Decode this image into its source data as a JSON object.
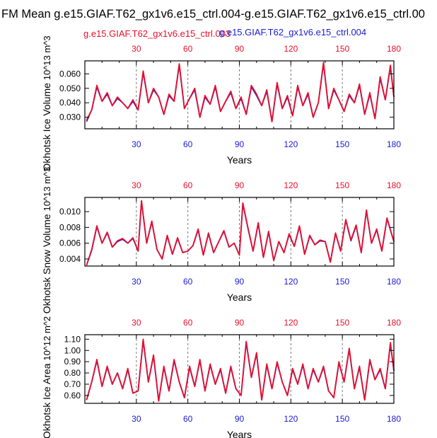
{
  "page": {
    "title": "FM Mean g.e15.GIAF.T62_gx1v6.e15_ctrl.004-g.e15.GIAF.T62_gx1v6.e15_ctrl.00",
    "legend_red": "g.e15.GIAF.T62_gx1v6.e15_ctrl.003",
    "legend_blue": "g.e15.GIAF.T62_gx1v6.e15_ctrl.004"
  },
  "colors": {
    "red": "#e8102b",
    "blue": "#1b1bd6",
    "frame": "#000000",
    "grid": "#7a7a7a"
  },
  "chart_data": [
    {
      "type": "line",
      "ylabel": "Okhotsk Ice Volume",
      "yunits": "10^13 m^3",
      "xlabel": "Years",
      "xlim": [
        0,
        180
      ],
      "ylim": [
        0.022,
        0.069
      ],
      "xticks": [
        30,
        60,
        90,
        120,
        150,
        180
      ],
      "yticks": [
        0.03,
        0.04,
        0.05,
        0.06
      ],
      "yticklabels": [
        "0.030",
        "0.040",
        "0.050",
        "0.060"
      ],
      "series": [
        {
          "name": "g.e15.GIAF.T62_gx1v6.e15_ctrl.003",
          "color": "red",
          "x": [
            1,
            4,
            7,
            10,
            13,
            16,
            19,
            22,
            25,
            28,
            31,
            34,
            37,
            40,
            43,
            46,
            49,
            52,
            55,
            58,
            61,
            64,
            67,
            70,
            73,
            76,
            79,
            82,
            85,
            88,
            91,
            94,
            97,
            100,
            103,
            106,
            109,
            112,
            115,
            118,
            121,
            124,
            127,
            130,
            133,
            136,
            139,
            142,
            145,
            148,
            151,
            154,
            157,
            160,
            163,
            166,
            169,
            172,
            175,
            178,
            180
          ],
          "y": [
            0.028,
            0.035,
            0.052,
            0.041,
            0.047,
            0.038,
            0.044,
            0.04,
            0.036,
            0.042,
            0.035,
            0.062,
            0.04,
            0.05,
            0.044,
            0.032,
            0.046,
            0.041,
            0.067,
            0.036,
            0.043,
            0.05,
            0.03,
            0.045,
            0.039,
            0.052,
            0.034,
            0.041,
            0.048,
            0.036,
            0.044,
            0.032,
            0.052,
            0.046,
            0.038,
            0.049,
            0.027,
            0.054,
            0.036,
            0.045,
            0.031,
            0.052,
            0.038,
            0.047,
            0.03,
            0.04,
            0.068,
            0.036,
            0.05,
            0.042,
            0.034,
            0.046,
            0.04,
            0.053,
            0.032,
            0.047,
            0.029,
            0.058,
            0.042,
            0.066,
            0.044
          ]
        },
        {
          "name": "g.e15.GIAF.T62_gx1v6.e15_ctrl.004",
          "color": "blue",
          "x": [
            1,
            4,
            7,
            10,
            13,
            16,
            19,
            22,
            25,
            28,
            31,
            34,
            37,
            40,
            43,
            46,
            49,
            52,
            55,
            58,
            61,
            64,
            67,
            70,
            73,
            76,
            79,
            82,
            85,
            88,
            91,
            94,
            97,
            100,
            103,
            106,
            109,
            112,
            115,
            118,
            121,
            124,
            127,
            130,
            133,
            136,
            139,
            142,
            145,
            148,
            151,
            154,
            157,
            160,
            163,
            166,
            169,
            172,
            175,
            178,
            180
          ],
          "y": [
            0.027,
            0.035,
            0.051,
            0.041,
            0.046,
            0.038,
            0.043,
            0.04,
            0.036,
            0.041,
            0.035,
            0.061,
            0.04,
            0.049,
            0.044,
            0.032,
            0.045,
            0.041,
            0.066,
            0.036,
            0.043,
            0.049,
            0.03,
            0.044,
            0.039,
            0.051,
            0.034,
            0.041,
            0.047,
            0.036,
            0.043,
            0.032,
            0.051,
            0.045,
            0.038,
            0.048,
            0.027,
            0.053,
            0.036,
            0.044,
            0.031,
            0.051,
            0.038,
            0.046,
            0.03,
            0.04,
            0.067,
            0.036,
            0.049,
            0.042,
            0.034,
            0.045,
            0.04,
            0.052,
            0.032,
            0.046,
            0.029,
            0.057,
            0.042,
            0.065,
            0.044
          ]
        }
      ]
    },
    {
      "type": "line",
      "ylabel": "Okhotsk Snow Volume",
      "yunits": "10^13 m^3",
      "xlabel": "Years",
      "xlim": [
        0,
        180
      ],
      "ylim": [
        0.0031,
        0.0118
      ],
      "xticks": [
        30,
        60,
        90,
        120,
        150,
        180
      ],
      "yticks": [
        0.004,
        0.006,
        0.008,
        0.01
      ],
      "yticklabels": [
        "0.004",
        "0.006",
        "0.008",
        "0.010"
      ],
      "series": [
        {
          "name": "g.e15.GIAF.T62_gx1v6.e15_ctrl.003",
          "color": "red",
          "x": [
            1,
            4,
            7,
            10,
            13,
            16,
            19,
            22,
            25,
            28,
            31,
            33,
            36,
            39,
            42,
            45,
            48,
            51,
            54,
            57,
            60,
            63,
            66,
            69,
            72,
            75,
            78,
            81,
            84,
            87,
            90,
            92,
            95,
            98,
            101,
            104,
            107,
            110,
            113,
            116,
            119,
            122,
            125,
            128,
            131,
            134,
            137,
            140,
            143,
            146,
            149,
            152,
            155,
            158,
            161,
            164,
            167,
            170,
            173,
            176,
            180
          ],
          "y": [
            0.0032,
            0.0052,
            0.0082,
            0.006,
            0.0074,
            0.0055,
            0.0063,
            0.0066,
            0.006,
            0.0067,
            0.005,
            0.0114,
            0.006,
            0.0088,
            0.0052,
            0.004,
            0.007,
            0.0046,
            0.0067,
            0.0048,
            0.005,
            0.0057,
            0.0078,
            0.0045,
            0.0073,
            0.0048,
            0.0062,
            0.0076,
            0.0055,
            0.006,
            0.0045,
            0.0111,
            0.008,
            0.005,
            0.0086,
            0.0042,
            0.0075,
            0.0038,
            0.0062,
            0.0048,
            0.0072,
            0.0056,
            0.0082,
            0.0046,
            0.007,
            0.0058,
            0.0064,
            0.0062,
            0.0036,
            0.0073,
            0.005,
            0.009,
            0.0064,
            0.0083,
            0.0048,
            0.0102,
            0.006,
            0.0078,
            0.005,
            0.0092,
            0.0062
          ]
        },
        {
          "name": "g.e15.GIAF.T62_gx1v6.e15_ctrl.004",
          "color": "blue",
          "x": [
            1,
            4,
            7,
            10,
            13,
            16,
            19,
            22,
            25,
            28,
            31,
            33,
            36,
            39,
            42,
            45,
            48,
            51,
            54,
            57,
            60,
            63,
            66,
            69,
            72,
            75,
            78,
            81,
            84,
            87,
            90,
            92,
            95,
            98,
            101,
            104,
            107,
            110,
            113,
            116,
            119,
            122,
            125,
            128,
            131,
            134,
            137,
            140,
            143,
            146,
            149,
            152,
            155,
            158,
            161,
            164,
            167,
            170,
            173,
            176,
            180
          ],
          "y": [
            0.0032,
            0.0051,
            0.0081,
            0.006,
            0.0073,
            0.0055,
            0.0062,
            0.0065,
            0.006,
            0.0066,
            0.005,
            0.0113,
            0.006,
            0.0087,
            0.0052,
            0.004,
            0.0069,
            0.0046,
            0.0066,
            0.0048,
            0.005,
            0.0057,
            0.0077,
            0.0045,
            0.0072,
            0.0048,
            0.0062,
            0.0075,
            0.0055,
            0.006,
            0.0045,
            0.011,
            0.0079,
            0.005,
            0.0085,
            0.0042,
            0.0074,
            0.0038,
            0.0062,
            0.0048,
            0.0071,
            0.0056,
            0.0081,
            0.0046,
            0.0069,
            0.0058,
            0.0063,
            0.0062,
            0.0036,
            0.0072,
            0.005,
            0.0089,
            0.0063,
            0.0082,
            0.0048,
            0.0101,
            0.006,
            0.0077,
            0.005,
            0.0091,
            0.0062
          ]
        }
      ]
    },
    {
      "type": "line",
      "ylabel": "Okhotsk Ice Area",
      "yunits": "10^12 m^2",
      "xlabel": "Years",
      "xlim": [
        0,
        180
      ],
      "ylim": [
        0.53,
        1.14
      ],
      "xticks": [
        30,
        60,
        90,
        120,
        150,
        180
      ],
      "yticks": [
        0.6,
        0.7,
        0.8,
        0.9,
        1.0,
        1.1
      ],
      "yticklabels": [
        "0.60",
        "0.70",
        "0.80",
        "0.90",
        "1.00",
        "1.10"
      ],
      "series": [
        {
          "name": "g.e15.GIAF.T62_gx1v6.e15_ctrl.003",
          "color": "red",
          "x": [
            1,
            4,
            7,
            10,
            13,
            16,
            19,
            22,
            25,
            28,
            31,
            34,
            37,
            40,
            43,
            46,
            49,
            52,
            55,
            58,
            61,
            64,
            67,
            70,
            73,
            76,
            79,
            82,
            85,
            88,
            91,
            94,
            97,
            100,
            103,
            106,
            109,
            112,
            115,
            118,
            121,
            124,
            127,
            130,
            133,
            136,
            139,
            142,
            145,
            148,
            151,
            154,
            157,
            160,
            163,
            166,
            169,
            172,
            175,
            178,
            180
          ],
          "y": [
            0.56,
            0.72,
            0.92,
            0.68,
            0.86,
            0.7,
            0.8,
            0.66,
            0.84,
            0.62,
            0.64,
            1.1,
            0.72,
            0.96,
            0.55,
            0.86,
            0.64,
            0.92,
            0.72,
            0.58,
            0.86,
            0.68,
            0.92,
            0.64,
            0.88,
            0.7,
            0.84,
            0.62,
            0.86,
            0.66,
            0.6,
            1.08,
            0.76,
            0.98,
            0.56,
            0.88,
            0.66,
            0.9,
            0.72,
            0.6,
            0.84,
            0.7,
            0.88,
            0.66,
            0.84,
            0.72,
            0.86,
            0.64,
            0.58,
            0.9,
            0.72,
            1.02,
            0.66,
            0.86,
            0.56,
            0.92,
            0.74,
            0.84,
            0.66,
            1.07,
            0.82
          ]
        },
        {
          "name": "g.e15.GIAF.T62_gx1v6.e15_ctrl.004",
          "color": "blue",
          "x": [
            1,
            4,
            7,
            10,
            13,
            16,
            19,
            22,
            25,
            28,
            31,
            34,
            37,
            40,
            43,
            46,
            49,
            52,
            55,
            58,
            61,
            64,
            67,
            70,
            73,
            76,
            79,
            82,
            85,
            88,
            91,
            94,
            97,
            100,
            103,
            106,
            109,
            112,
            115,
            118,
            121,
            124,
            127,
            130,
            133,
            136,
            139,
            142,
            145,
            148,
            151,
            154,
            157,
            160,
            163,
            166,
            169,
            172,
            175,
            178,
            180
          ],
          "y": [
            0.56,
            0.72,
            0.91,
            0.68,
            0.85,
            0.7,
            0.8,
            0.66,
            0.83,
            0.62,
            0.64,
            1.09,
            0.72,
            0.95,
            0.55,
            0.85,
            0.64,
            0.91,
            0.72,
            0.58,
            0.85,
            0.68,
            0.91,
            0.64,
            0.87,
            0.7,
            0.83,
            0.62,
            0.85,
            0.66,
            0.6,
            1.07,
            0.76,
            0.97,
            0.56,
            0.87,
            0.66,
            0.89,
            0.72,
            0.6,
            0.83,
            0.7,
            0.87,
            0.66,
            0.83,
            0.72,
            0.85,
            0.64,
            0.58,
            0.89,
            0.72,
            1.01,
            0.66,
            0.85,
            0.56,
            0.91,
            0.74,
            0.83,
            0.66,
            1.06,
            0.82
          ]
        }
      ]
    }
  ]
}
